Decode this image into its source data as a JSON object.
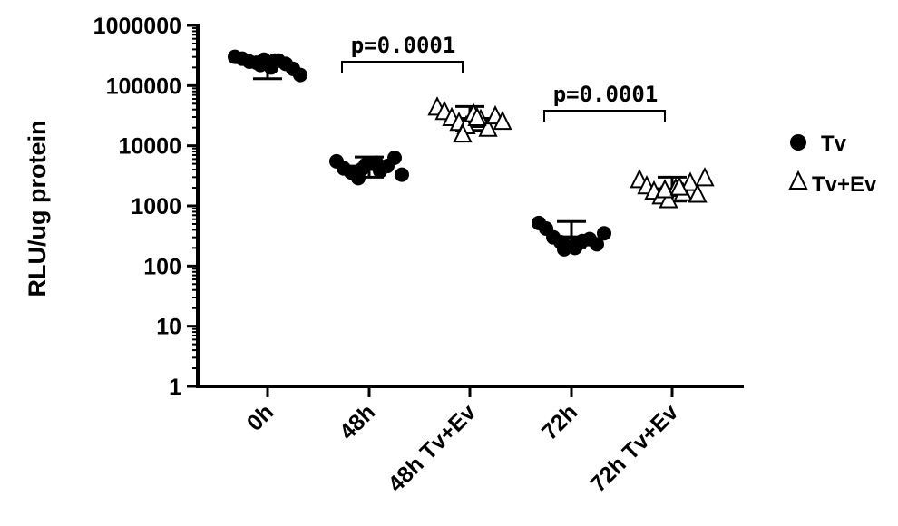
{
  "chart_data": {
    "type": "scatter",
    "ylabel": "RLU/ug protein",
    "xlabel": "",
    "yscale": "log",
    "ylim": [
      1,
      1000000
    ],
    "yticks": [
      "1",
      "10",
      "100",
      "1000",
      "10000",
      "100000",
      "1000000"
    ],
    "categories": [
      "0h",
      "48h",
      "48h Tv+Ev",
      "72h",
      "72h Tv+Ev"
    ],
    "series": [
      {
        "name": "Tv",
        "marker": "circle",
        "groups": [
          {
            "category": "0h",
            "mean": 230000,
            "error": [
              130000,
              290000
            ],
            "values": [
              300000,
              280000,
              250000,
              240000,
              270000,
              200000,
              260000,
              230000,
              190000,
              150000,
              220000,
              260000
            ]
          },
          {
            "category": "48h",
            "mean": 4500,
            "error": [
              3000,
              6500
            ],
            "values": [
              5500,
              4200,
              3600,
              2900,
              4800,
              5000,
              3800,
              4600,
              6300,
              3300,
              4100,
              5200
            ]
          },
          {
            "category": "72h",
            "mean": 300,
            "error": [
              200,
              550
            ],
            "values": [
              520,
              420,
              300,
              250,
              210,
              200,
              260,
              280,
              230,
              350,
              190,
              240
            ]
          }
        ]
      },
      {
        "name": "Tv+Ev",
        "marker": "triangle-open",
        "groups": [
          {
            "category": "48h Tv+Ev",
            "mean": 28000,
            "error": [
              18000,
              45000
            ],
            "values": [
              45000,
              38000,
              30000,
              25000,
              22000,
              35000,
              28000,
              20000,
              32000,
              26000,
              16000,
              30000
            ]
          },
          {
            "category": "72h Tv+Ev",
            "mean": 1900,
            "error": [
              1200,
              3000
            ],
            "values": [
              2800,
              2200,
              1800,
              1500,
              1300,
              2000,
              1700,
              2500,
              1600,
              3000,
              1900,
              2100
            ]
          }
        ]
      }
    ],
    "annotations": [
      {
        "text": "p=0.0001",
        "from": "48h",
        "to": "48h Tv+Ev"
      },
      {
        "text": "p=0.0001",
        "from": "72h",
        "to": "72h Tv+Ev"
      }
    ],
    "legend": {
      "position": "right",
      "entries": [
        {
          "marker": "circle",
          "label": "Tv"
        },
        {
          "marker": "triangle-open",
          "label": "Tv+Ev"
        }
      ]
    },
    "grid": false
  }
}
